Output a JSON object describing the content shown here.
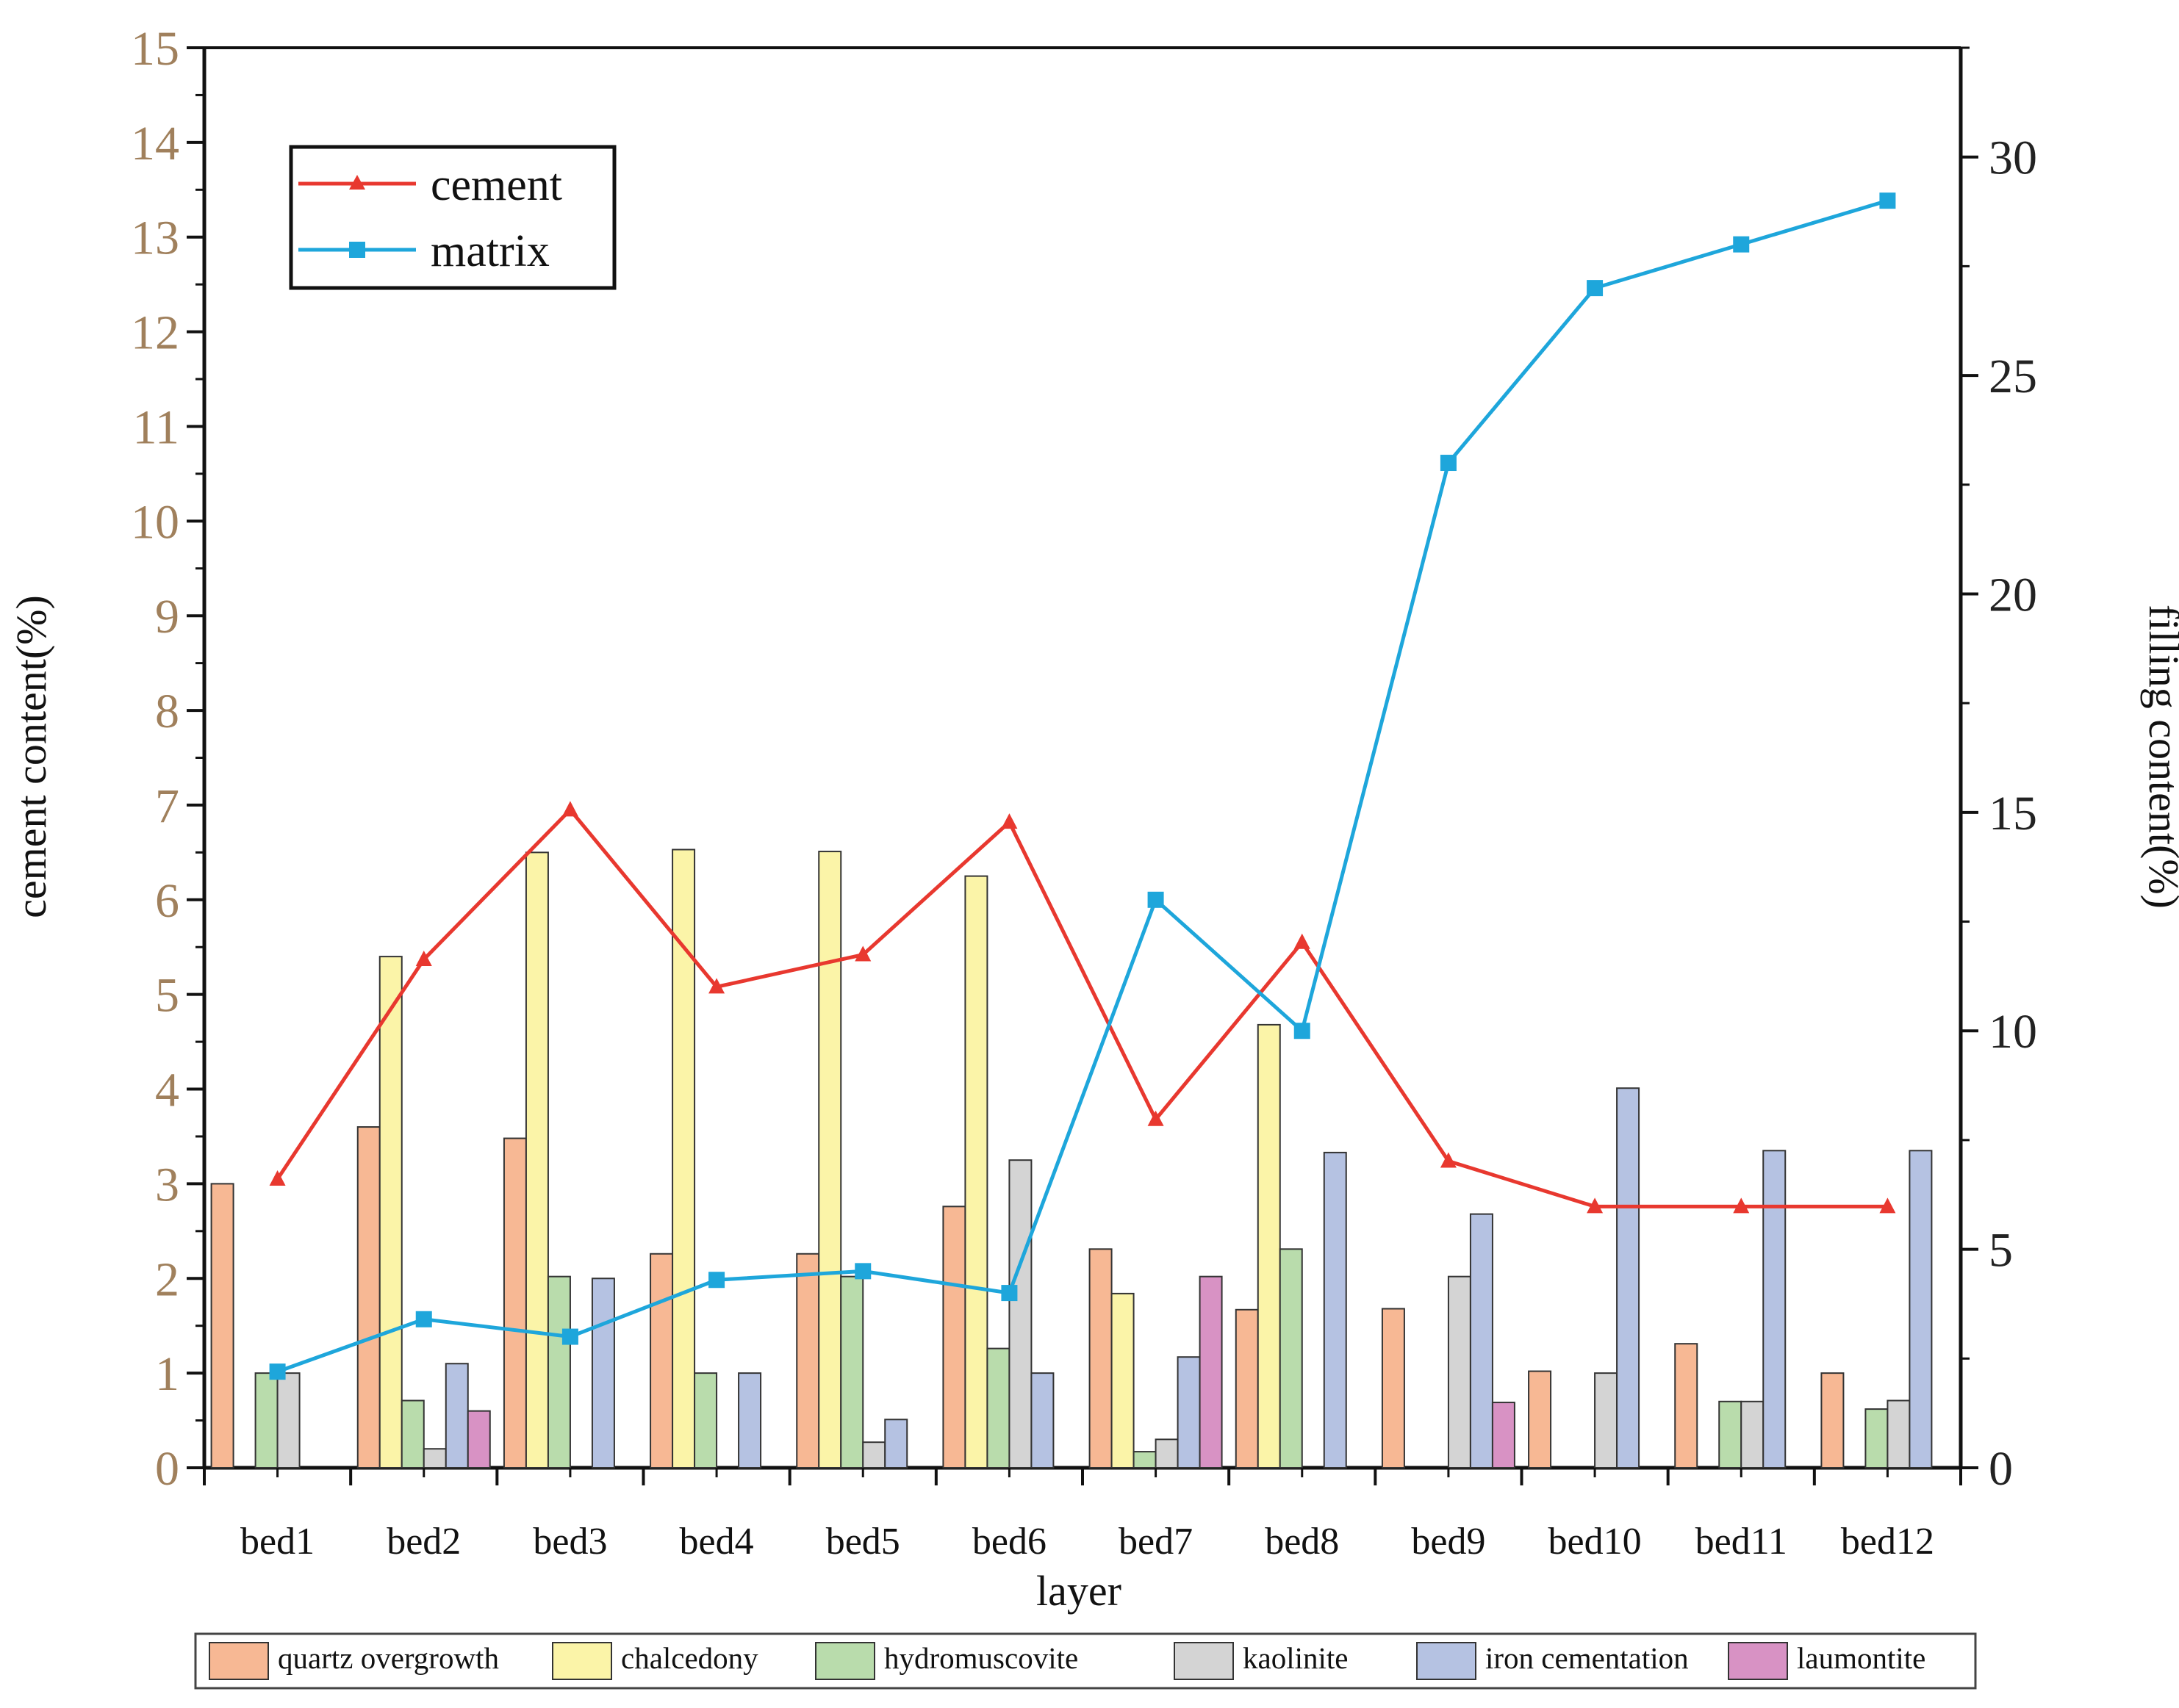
{
  "chart_data": {
    "type": "bar",
    "combo": "bar+line",
    "categories": [
      "bed1",
      "bed2",
      "bed3",
      "bed4",
      "bed5",
      "bed6",
      "bed7",
      "bed8",
      "bed9",
      "bed10",
      "bed11",
      "bed12"
    ],
    "xlabel": "layer",
    "ylabel_left": "cement content(%)",
    "ylabel_right": "filling content(%)",
    "ylim_left": [
      0,
      15
    ],
    "ylim_right": [
      0,
      32.5
    ],
    "left_ticks": [
      "0",
      "1",
      "2",
      "3",
      "4",
      "5",
      "6",
      "7",
      "8",
      "9",
      "10",
      "11",
      "12",
      "13",
      "14",
      "15"
    ],
    "right_ticks": [
      "0",
      "5",
      "10",
      "15",
      "20",
      "25",
      "30"
    ],
    "bar_series": [
      {
        "name": "quartz overgrowth",
        "color": "#f7b894",
        "values": [
          3.0,
          3.6,
          3.48,
          2.26,
          2.26,
          2.76,
          2.31,
          1.67,
          1.68,
          1.02,
          1.31,
          1.0
        ]
      },
      {
        "name": "chalcedony",
        "color": "#fbf4a8",
        "values": [
          0,
          5.4,
          6.5,
          6.53,
          6.51,
          6.25,
          1.84,
          4.68,
          0,
          0,
          0,
          0
        ]
      },
      {
        "name": "hydromuscovite",
        "color": "#b9dcac",
        "values": [
          1.0,
          0.71,
          2.02,
          1.0,
          2.02,
          1.26,
          0.17,
          2.31,
          0,
          0,
          0.7,
          0.62
        ]
      },
      {
        "name": "kaolinite",
        "color": "#d4d4d4",
        "values": [
          1.0,
          0.2,
          0,
          0,
          0.27,
          3.25,
          0.3,
          0,
          2.02,
          1.0,
          0.7,
          0.71
        ]
      },
      {
        "name": "iron cementation",
        "color": "#b5c2e2",
        "values": [
          0,
          1.1,
          2.0,
          1.0,
          0.51,
          1.0,
          1.17,
          3.33,
          2.68,
          4.01,
          3.35,
          3.35
        ]
      },
      {
        "name": "laumontite",
        "color": "#d892c4",
        "values": [
          0,
          0.6,
          0,
          0,
          0,
          0,
          2.02,
          0,
          0.69,
          0,
          0,
          0
        ]
      }
    ],
    "line_series": [
      {
        "name": "cement",
        "axis": "left",
        "color": "#e8382f",
        "marker": "triangle",
        "values": [
          3.05,
          5.37,
          6.95,
          5.08,
          5.42,
          6.82,
          3.68,
          5.55,
          3.24,
          2.76,
          2.76,
          2.76
        ]
      },
      {
        "name": "matrix",
        "axis": "right",
        "color": "#1ea6db",
        "marker": "square",
        "values": [
          2.2,
          3.4,
          3.0,
          4.3,
          4.5,
          4.0,
          13.0,
          10.0,
          23.0,
          27.0,
          28.0,
          29.0
        ]
      }
    ],
    "line_legend": [
      "cement",
      "matrix"
    ],
    "bar_legend": [
      "quartz overgrowth",
      "chalcedony",
      "hydromuscovite",
      "kaolinite",
      "iron cementation",
      "laumontite"
    ],
    "legend_position": "top-left (lines), bottom (bars)"
  }
}
